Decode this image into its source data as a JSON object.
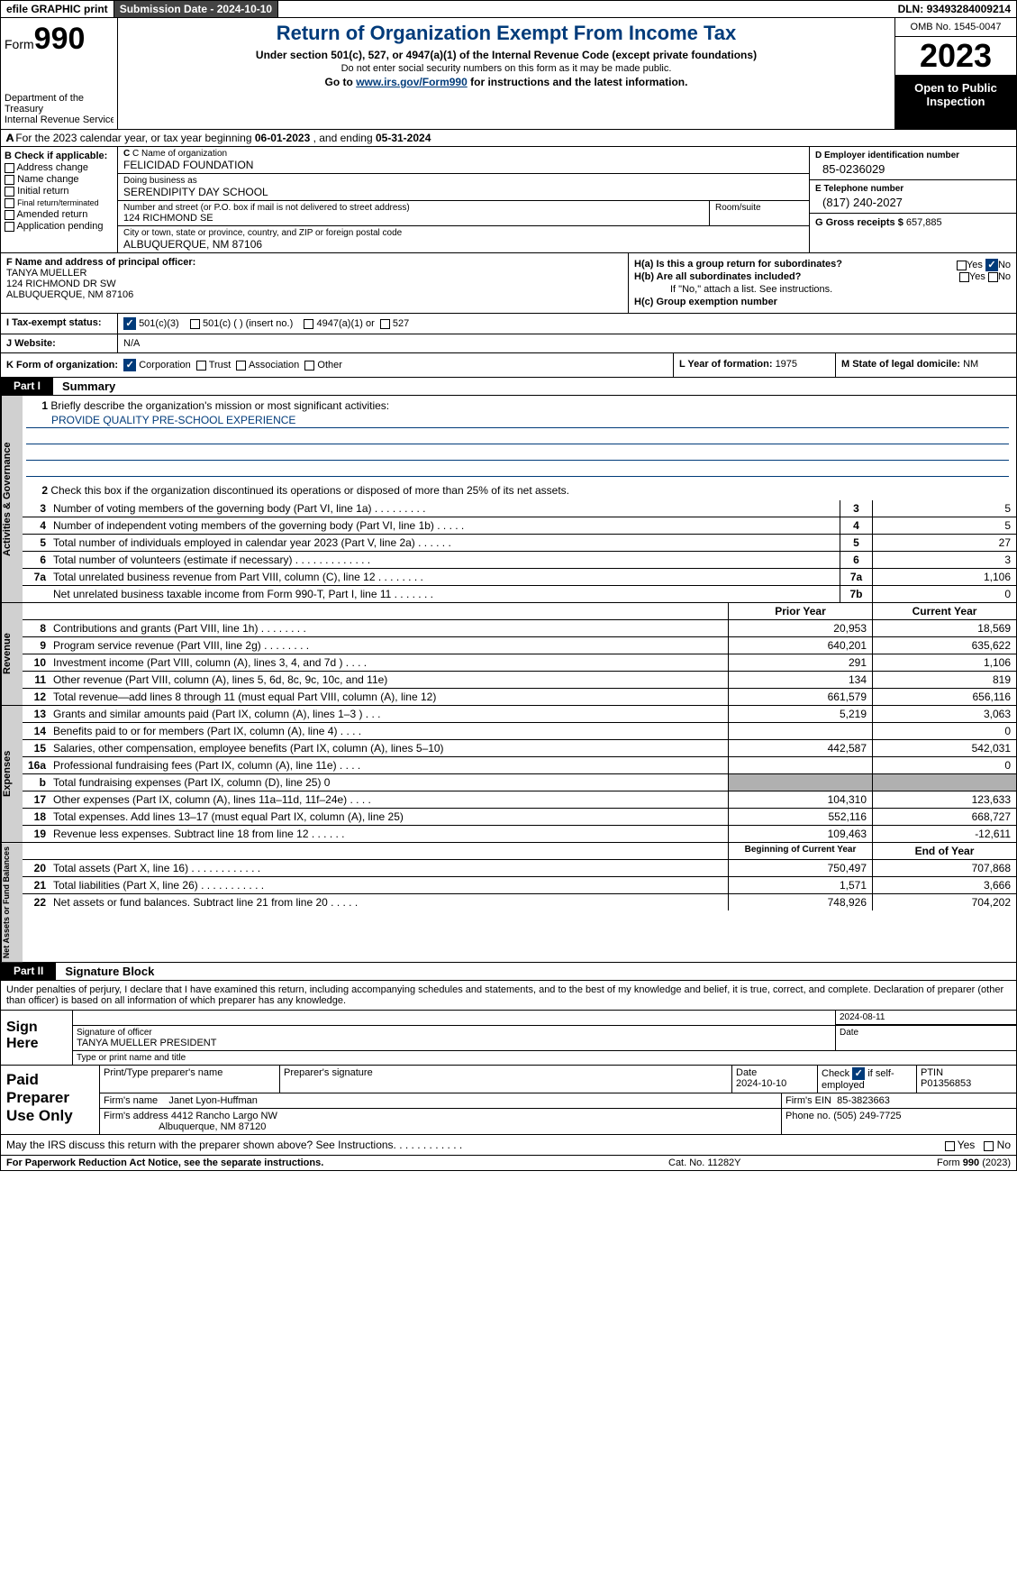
{
  "topbar": {
    "efile": "efile GRAPHIC print",
    "subdate_label": "Submission Date - ",
    "subdate": "2024-10-10",
    "dln_label": "DLN: ",
    "dln": "93493284009214"
  },
  "header": {
    "form_prefix": "Form",
    "form_num": "990",
    "dept1": "Department of the Treasury",
    "dept2": "Internal Revenue Service",
    "title": "Return of Organization Exempt From Income Tax",
    "sub1": "Under section 501(c), 527, or 4947(a)(1) of the Internal Revenue Code (except private foundations)",
    "sub2": "Do not enter social security numbers on this form as it may be made public.",
    "sub3_pre": "Go to ",
    "sub3_link": "www.irs.gov/Form990",
    "sub3_post": " for instructions and the latest information.",
    "omb": "OMB No. 1545-0047",
    "year": "2023",
    "inspect": "Open to Public Inspection"
  },
  "rowA": {
    "text_pre": "A For the 2023 calendar year, or tax year beginning ",
    "begin": "06-01-2023",
    "text_mid": "   , and ending ",
    "end": "05-31-2024"
  },
  "boxB": {
    "label": "B Check if applicable:",
    "opts": [
      "Address change",
      "Name change",
      "Initial return",
      "Final return/terminated",
      "Amended return",
      "Application pending"
    ]
  },
  "boxC": {
    "name_lbl": "C Name of organization",
    "name": "FELICIDAD FOUNDATION",
    "dba_lbl": "Doing business as",
    "dba": "SERENDIPITY DAY SCHOOL",
    "street_lbl": "Number and street (or P.O. box if mail is not delivered to street address)",
    "room_lbl": "Room/suite",
    "street": "124 RICHMOND SE",
    "city_lbl": "City or town, state or province, country, and ZIP or foreign postal code",
    "city": "ALBUQUERQUE, NM  87106"
  },
  "boxD": {
    "lbl": "D Employer identification number",
    "val": "85-0236029"
  },
  "boxE": {
    "lbl": "E Telephone number",
    "val": "(817) 240-2027"
  },
  "boxG": {
    "lbl": "G Gross receipts $ ",
    "val": "657,885"
  },
  "boxF": {
    "lbl": "F  Name and address of principal officer:",
    "name": "TANYA MUELLER",
    "street": "124 RICHMOND DR SW",
    "city": "ALBUQUERQUE, NM  87106"
  },
  "boxH": {
    "a_lbl": "H(a)  Is this a group return for subordinates?",
    "a_no": true,
    "b_lbl": "H(b)  Are all subordinates included?",
    "b_note": "If \"No,\" attach a list. See instructions.",
    "c_lbl": "H(c)  Group exemption number"
  },
  "boxI": {
    "lbl": "I   Tax-exempt status:",
    "c501c3": "501(c)(3)",
    "c501c": "501(c) (  ) (insert no.)",
    "c4947": "4947(a)(1) or",
    "c527": "527"
  },
  "boxJ": {
    "lbl": "J   Website:",
    "val": "N/A"
  },
  "boxK": {
    "lbl": "K Form of organization:",
    "corp": "Corporation",
    "trust": "Trust",
    "assoc": "Association",
    "other": "Other"
  },
  "boxL": {
    "lbl": "L Year of formation: ",
    "val": "1975"
  },
  "boxM": {
    "lbl": "M State of legal domicile: ",
    "val": "NM"
  },
  "part1": {
    "num": "Part I",
    "title": "Summary"
  },
  "sec1": {
    "vtab": "Activities & Governance",
    "q1_lbl": "Briefly describe the organization's mission or most significant activities:",
    "q1_val": "PROVIDE QUALITY PRE-SCHOOL EXPERIENCE",
    "q2": "Check this box        if the organization discontinued its operations or disposed of more than 25% of its net assets.",
    "rows": [
      {
        "n": "3",
        "d": "Number of voting members of the governing body (Part VI, line 1a)  .   .   .   .   .   .   .   .   .",
        "b": "3",
        "v": "5"
      },
      {
        "n": "4",
        "d": "Number of independent voting members of the governing body (Part VI, line 1b)   .   .   .   .   .",
        "b": "4",
        "v": "5"
      },
      {
        "n": "5",
        "d": "Total number of individuals employed in calendar year 2023 (Part V, line 2a)   .   .   .   .   .   .",
        "b": "5",
        "v": "27"
      },
      {
        "n": "6",
        "d": "Total number of volunteers (estimate if necessary)   .   .   .   .   .   .   .   .   .   .   .   .   .",
        "b": "6",
        "v": "3"
      },
      {
        "n": "7a",
        "d": "Total unrelated business revenue from Part VIII, column (C), line 12   .   .   .   .   .   .   .   .",
        "b": "7a",
        "v": "1,106"
      },
      {
        "n": "",
        "d": "Net unrelated business taxable income from Form 990-T, Part I, line 11   .   .   .   .   .   .   .",
        "b": "7b",
        "v": "0"
      }
    ]
  },
  "col_hdrs": {
    "prior": "Prior Year",
    "current": "Current Year",
    "beg": "Beginning of Current Year",
    "end": "End of Year"
  },
  "revenue": {
    "vtab": "Revenue",
    "rows": [
      {
        "n": "8",
        "d": "Contributions and grants (Part VIII, line 1h)   .   .   .   .   .   .   .   .",
        "p": "20,953",
        "c": "18,569"
      },
      {
        "n": "9",
        "d": "Program service revenue (Part VIII, line 2g)   .   .   .   .   .   .   .   .",
        "p": "640,201",
        "c": "635,622"
      },
      {
        "n": "10",
        "d": "Investment income (Part VIII, column (A), lines 3, 4, and 7d )   .   .   .   .",
        "p": "291",
        "c": "1,106"
      },
      {
        "n": "11",
        "d": "Other revenue (Part VIII, column (A), lines 5, 6d, 8c, 9c, 10c, and 11e)",
        "p": "134",
        "c": "819"
      },
      {
        "n": "12",
        "d": "Total revenue—add lines 8 through 11 (must equal Part VIII, column (A), line 12)",
        "p": "661,579",
        "c": "656,116"
      }
    ]
  },
  "expenses": {
    "vtab": "Expenses",
    "rows": [
      {
        "n": "13",
        "d": "Grants and similar amounts paid (Part IX, column (A), lines 1–3 )   .   .   .",
        "p": "5,219",
        "c": "3,063"
      },
      {
        "n": "14",
        "d": "Benefits paid to or for members (Part IX, column (A), line 4)   .   .   .   .",
        "p": "",
        "c": "0"
      },
      {
        "n": "15",
        "d": "Salaries, other compensation, employee benefits (Part IX, column (A), lines 5–10)",
        "p": "442,587",
        "c": "542,031"
      },
      {
        "n": "16a",
        "d": "Professional fundraising fees (Part IX, column (A), line 11e)   .   .   .   .",
        "p": "",
        "c": "0"
      },
      {
        "n": "b",
        "d": "Total fundraising expenses (Part IX, column (D), line 25) 0",
        "p": "GREY",
        "c": "GREY"
      },
      {
        "n": "17",
        "d": "Other expenses (Part IX, column (A), lines 11a–11d, 11f–24e)   .   .   .   .",
        "p": "104,310",
        "c": "123,633"
      },
      {
        "n": "18",
        "d": "Total expenses. Add lines 13–17 (must equal Part IX, column (A), line 25)",
        "p": "552,116",
        "c": "668,727"
      },
      {
        "n": "19",
        "d": "Revenue less expenses. Subtract line 18 from line 12   .   .   .   .   .   .",
        "p": "109,463",
        "c": "-12,611"
      }
    ]
  },
  "netassets": {
    "vtab": "Net Assets or Fund Balances",
    "rows": [
      {
        "n": "20",
        "d": "Total assets (Part X, line 16)   .   .   .   .   .   .   .   .   .   .   .   .",
        "p": "750,497",
        "c": "707,868"
      },
      {
        "n": "21",
        "d": "Total liabilities (Part X, line 26)   .   .   .   .   .   .   .   .   .   .   .",
        "p": "1,571",
        "c": "3,666"
      },
      {
        "n": "22",
        "d": "Net assets or fund balances. Subtract line 21 from line 20   .   .   .   .   .",
        "p": "748,926",
        "c": "704,202"
      }
    ]
  },
  "part2": {
    "num": "Part II",
    "title": "Signature Block"
  },
  "sig_intro": "Under penalties of perjury, I declare that I have examined this return, including accompanying schedules and statements, and to the best of my knowledge and belief, it is true, correct, and complete. Declaration of preparer (other than officer) is based on all information of which preparer has any knowledge.",
  "sign": {
    "lbl": "Sign Here",
    "date": "2024-08-11",
    "sigoff_lbl": "Signature of officer",
    "name": "TANYA MUELLER PRESIDENT",
    "type_lbl": "Type or print name and title",
    "date_lbl": "Date"
  },
  "prep": {
    "lbl": "Paid Preparer Use Only",
    "h1": "Print/Type preparer's name",
    "h2": "Preparer's signature",
    "h3_lbl": "Date",
    "h3": "2024-10-10",
    "h4_lbl": "Check",
    "h4_txt": "if self-employed",
    "h5_lbl": "PTIN",
    "h5": "P01356853",
    "firm_name_lbl": "Firm's name",
    "firm_name": "Janet Lyon-Huffman",
    "firm_ein_lbl": "Firm's EIN",
    "firm_ein": "85-3823663",
    "firm_addr_lbl": "Firm's address",
    "firm_addr1": "4412 Rancho Largo NW",
    "firm_addr2": "Albuquerque, NM  87120",
    "phone_lbl": "Phone no.",
    "phone": "(505) 249-7725"
  },
  "discuss": {
    "q": "May the IRS discuss this return with the preparer shown above? See Instructions.   .   .   .   .   .   .   .   .   .   .   .",
    "yes": "Yes",
    "no": "No"
  },
  "footer": {
    "f1": "For Paperwork Reduction Act Notice, see the separate instructions.",
    "f2": "Cat. No. 11282Y",
    "f3_pre": "Form ",
    "f3_b": "990",
    "f3_post": " (2023)"
  }
}
